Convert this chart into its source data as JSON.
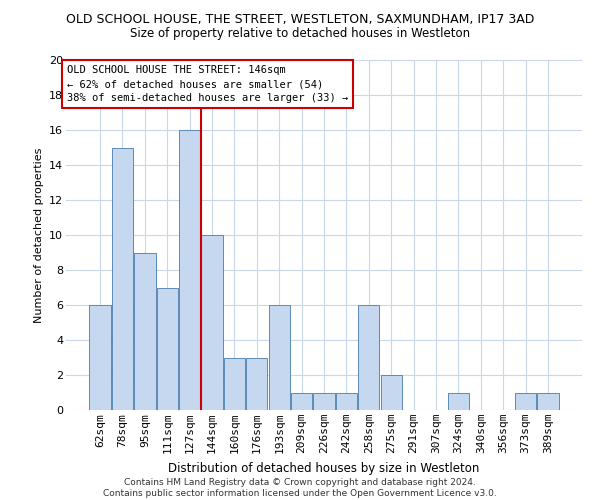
{
  "title1": "OLD SCHOOL HOUSE, THE STREET, WESTLETON, SAXMUNDHAM, IP17 3AD",
  "title2": "Size of property relative to detached houses in Westleton",
  "xlabel": "Distribution of detached houses by size in Westleton",
  "ylabel": "Number of detached properties",
  "categories": [
    "62sqm",
    "78sqm",
    "95sqm",
    "111sqm",
    "127sqm",
    "144sqm",
    "160sqm",
    "176sqm",
    "193sqm",
    "209sqm",
    "226sqm",
    "242sqm",
    "258sqm",
    "275sqm",
    "291sqm",
    "307sqm",
    "324sqm",
    "340sqm",
    "356sqm",
    "373sqm",
    "389sqm"
  ],
  "values": [
    6,
    15,
    9,
    7,
    16,
    10,
    3,
    3,
    6,
    1,
    1,
    1,
    6,
    2,
    0,
    0,
    1,
    0,
    0,
    1,
    1
  ],
  "bar_color": "#c5d8f0",
  "bar_edge_color": "#5a8ab5",
  "vline_x": 4.5,
  "vline_color": "#cc0000",
  "ylim": [
    0,
    20
  ],
  "yticks": [
    0,
    2,
    4,
    6,
    8,
    10,
    12,
    14,
    16,
    18,
    20
  ],
  "annotation_lines": [
    "OLD SCHOOL HOUSE THE STREET: 146sqm",
    "← 62% of detached houses are smaller (54)",
    "38% of semi-detached houses are larger (33) →"
  ],
  "annotation_box_color": "#ffffff",
  "annotation_box_edge": "#cc0000",
  "footer": "Contains HM Land Registry data © Crown copyright and database right 2024.\nContains public sector information licensed under the Open Government Licence v3.0.",
  "background_color": "#ffffff",
  "grid_color": "#c8d8e8",
  "title1_fontsize": 9,
  "title2_fontsize": 8.5,
  "xlabel_fontsize": 8.5,
  "ylabel_fontsize": 8,
  "tick_fontsize": 8,
  "ann_fontsize": 7.5,
  "footer_fontsize": 6.5
}
